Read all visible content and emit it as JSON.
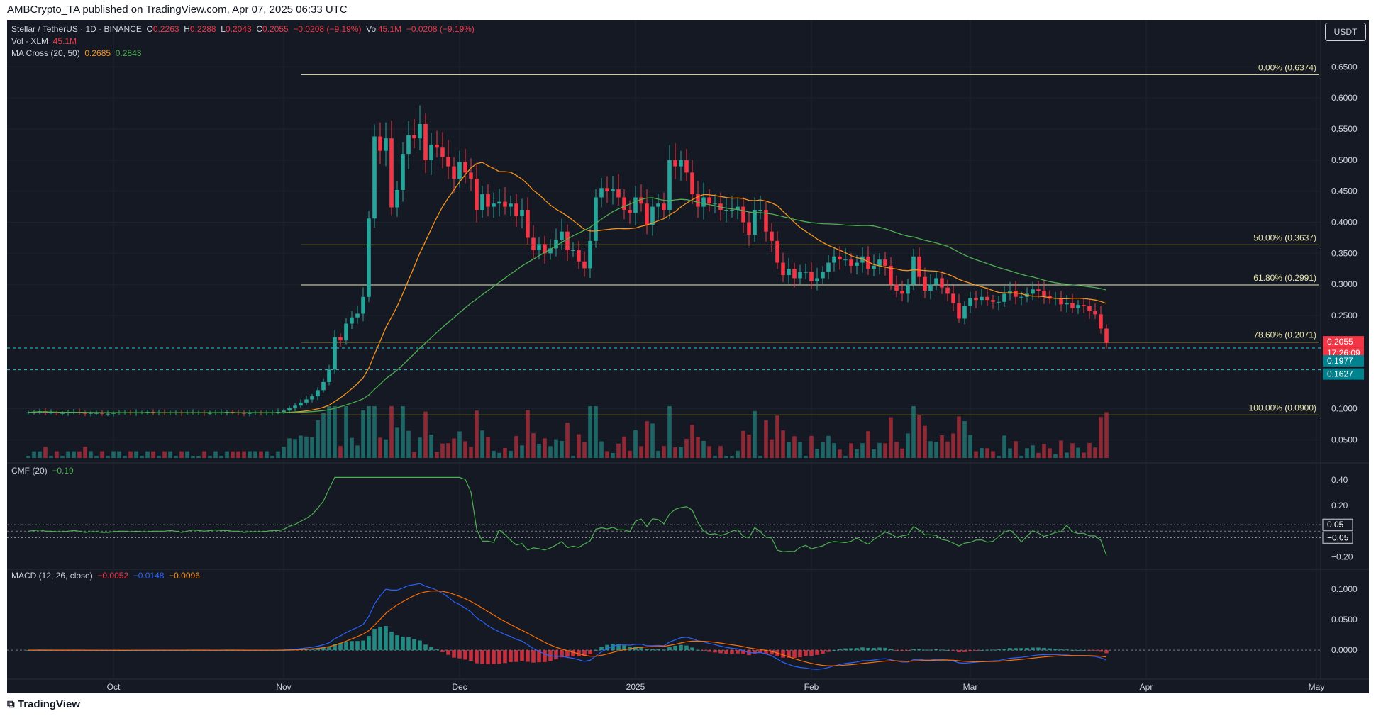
{
  "header": {
    "publisher_line": "AMBCrypto_TA published on TradingView.com, Apr 07, 2025 06:33 UTC"
  },
  "footer": {
    "brand": "TradingView"
  },
  "colors": {
    "up": "#26a69a",
    "down": "#f23645",
    "ma20": "#f7931a",
    "ma50": "#4caf50",
    "macd": "#2962ff",
    "signal": "#ff6d00",
    "fib": "#e8e6a8",
    "cmf": "#4caf50"
  },
  "main_legend": {
    "symbol": "Stellar / TetherUS · 1D · BINANCE",
    "o_label": "O",
    "o_value": "0.2263",
    "h_label": "H",
    "h_value": "0.2288",
    "l_label": "L",
    "l_value": "0.2043",
    "c_label": "C",
    "c_value": "0.2055",
    "change": "−0.0208 (−9.19%)",
    "vol_label": "Vol",
    "vol_value": "45.1M",
    "vol_change": "−0.0208 (−9.19%)",
    "vol_xlm_label": "Vol · XLM",
    "vol_xlm_value": "45.1M",
    "ma_label": "MA Cross (20, 50)",
    "ma20_value": "0.2685",
    "ma50_value": "0.2843"
  },
  "cmf_legend": {
    "label": "CMF (20)",
    "value": "−0.19"
  },
  "macd_legend": {
    "label": "MACD (12, 26, close)",
    "v1": "−0.0052",
    "v2": "−0.0148",
    "v3": "−0.0096"
  },
  "currency_button": "USDT",
  "price_labels": {
    "last": "0.2055",
    "countdown": "17:26:09",
    "level1": "0.1977",
    "level2": "0.1627"
  },
  "cmf_labels": {
    "upper": "0.05",
    "lower": "−0.05"
  },
  "chart_data": [
    {
      "type": "candlestick",
      "title": "Stellar / TetherUS · 1D · BINANCE",
      "y_axis_ticks": [
        "0.6500",
        "0.6000",
        "0.5500",
        "0.5000",
        "0.4500",
        "0.4000",
        "0.3500",
        "0.3000",
        "0.2500",
        "0.1000",
        "0.0500"
      ],
      "y_axis_values": [
        0.65,
        0.6,
        0.55,
        0.5,
        0.45,
        0.4,
        0.35,
        0.3,
        0.25,
        0.1,
        0.05
      ],
      "x_axis_ticks": [
        "Oct",
        "Nov",
        "Dec",
        "2025",
        "Feb",
        "Mar",
        "Apr",
        "May"
      ],
      "fibonacci_levels": [
        {
          "label": "0.00% (0.6374)",
          "value": 0.6374
        },
        {
          "label": "50.00% (0.3637)",
          "value": 0.3637
        },
        {
          "label": "61.80% (0.2991)",
          "value": 0.2991
        },
        {
          "label": "78.60% (0.2071)",
          "value": 0.2071
        },
        {
          "label": "100.00% (0.0900)",
          "value": 0.09
        }
      ],
      "horizontal_levels": [
        0.1977,
        0.1627
      ],
      "close_series": [
        0.094,
        0.095,
        0.096,
        0.094,
        0.094,
        0.093,
        0.093,
        0.094,
        0.095,
        0.094,
        0.092,
        0.093,
        0.093,
        0.092,
        0.092,
        0.093,
        0.094,
        0.094,
        0.093,
        0.094,
        0.094,
        0.095,
        0.094,
        0.094,
        0.093,
        0.094,
        0.094,
        0.093,
        0.094,
        0.094,
        0.094,
        0.093,
        0.093,
        0.094,
        0.094,
        0.095,
        0.094,
        0.093,
        0.092,
        0.093,
        0.094,
        0.093,
        0.094,
        0.094,
        0.095,
        0.097,
        0.101,
        0.105,
        0.11,
        0.115,
        0.12,
        0.13,
        0.143,
        0.163,
        0.215,
        0.21,
        0.237,
        0.247,
        0.253,
        0.28,
        0.406,
        0.538,
        0.515,
        0.535,
        0.424,
        0.452,
        0.51,
        0.54,
        0.535,
        0.558,
        0.5,
        0.525,
        0.52,
        0.505,
        0.49,
        0.47,
        0.497,
        0.48,
        0.47,
        0.42,
        0.445,
        0.425,
        0.43,
        0.433,
        0.425,
        0.43,
        0.41,
        0.42,
        0.375,
        0.355,
        0.365,
        0.35,
        0.358,
        0.372,
        0.385,
        0.355,
        0.355,
        0.337,
        0.326,
        0.37,
        0.44,
        0.455,
        0.45,
        0.453,
        0.44,
        0.42,
        0.415,
        0.44,
        0.43,
        0.395,
        0.425,
        0.43,
        0.42,
        0.5,
        0.49,
        0.5,
        0.48,
        0.445,
        0.425,
        0.44,
        0.43,
        0.43,
        0.42,
        0.42,
        0.42,
        0.425,
        0.4,
        0.38,
        0.42,
        0.42,
        0.385,
        0.37,
        0.335,
        0.315,
        0.325,
        0.31,
        0.32,
        0.32,
        0.305,
        0.31,
        0.32,
        0.335,
        0.345,
        0.34,
        0.34,
        0.33,
        0.335,
        0.345,
        0.325,
        0.33,
        0.34,
        0.33,
        0.3,
        0.29,
        0.285,
        0.3,
        0.345,
        0.312,
        0.29,
        0.3,
        0.31,
        0.295,
        0.285,
        0.27,
        0.245,
        0.265,
        0.278,
        0.275,
        0.28,
        0.275,
        0.272,
        0.272,
        0.285,
        0.29,
        0.28,
        0.28,
        0.285,
        0.292,
        0.29,
        0.282,
        0.277,
        0.278,
        0.268,
        0.27,
        0.262,
        0.267,
        0.265,
        0.257,
        0.252,
        0.229,
        0.2055
      ],
      "ma20_series": "20-period moving average of close_series",
      "ma50_series": "50-period moving average of close_series"
    },
    {
      "type": "bar",
      "title": "Vol · XLM",
      "note": "volume bars colored by candle direction, peak near late November"
    },
    {
      "type": "line",
      "title": "CMF (20)",
      "y_axis_ticks": [
        "0.40",
        "0.20",
        "−0.20"
      ],
      "y_axis_values": [
        0.4,
        0.2,
        -0.2
      ],
      "reference_levels": [
        0.05,
        -0.05
      ],
      "last_value": -0.19
    },
    {
      "type": "line",
      "title": "MACD (12, 26, close)",
      "y_axis_ticks": [
        "0.1000",
        "0.0500",
        "0.0000"
      ],
      "y_axis_values": [
        0.1,
        0.05,
        0.0
      ],
      "series": [
        {
          "name": "MACD",
          "last": -0.0148
        },
        {
          "name": "Signal",
          "last": -0.0096
        },
        {
          "name": "Histogram",
          "last": -0.0052
        }
      ]
    }
  ]
}
